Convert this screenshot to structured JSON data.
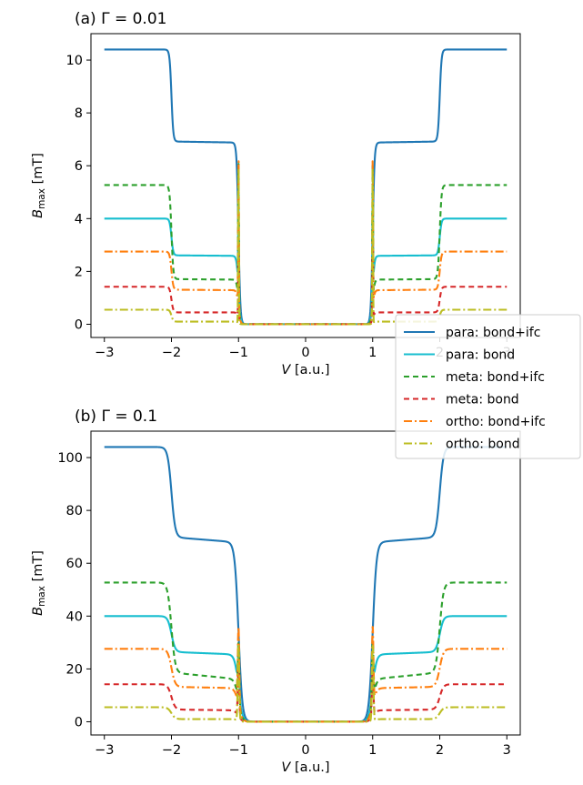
{
  "chart_data": [
    {
      "type": "line",
      "title": "(a) Γ = 0.01",
      "xlabel": "V [a.u.]",
      "ylabel": "B_max [mT]",
      "xlim": [
        -3.2,
        3.2
      ],
      "ylim": [
        -0.5,
        11.0
      ],
      "xticks": [
        -3,
        -2,
        -1,
        0,
        1,
        2,
        3
      ],
      "xtick_labels": [
        "−3",
        "−2",
        "−1",
        "0",
        "1",
        "2",
        "3"
      ],
      "yticks": [
        0,
        2,
        4,
        6,
        8,
        10
      ],
      "ytick_labels": [
        "0",
        "2",
        "4",
        "6",
        "8",
        "10"
      ],
      "gamma": 0.01,
      "series": [
        {
          "name": "para: bond+ifc",
          "plateaus": [
            10.4,
            6.9,
            0.0
          ],
          "tilt": 0.04,
          "peak": 6.9,
          "color": "#1f77b4",
          "dash": ""
        },
        {
          "name": "para: bond",
          "plateaus": [
            4.0,
            2.6,
            0.0
          ],
          "tilt": 0.02,
          "peak": 6.6,
          "color": "#17becf",
          "dash": ""
        },
        {
          "name": "meta: bond+ifc",
          "plateaus": [
            5.27,
            1.7,
            0.0
          ],
          "tilt": 0.02,
          "peak": 7.2,
          "color": "#2ca02c",
          "dash": "6 4"
        },
        {
          "name": "meta: bond",
          "plateaus": [
            1.42,
            0.45,
            0.0
          ],
          "tilt": 0.0,
          "peak": 3.5,
          "color": "#d62728",
          "dash": "6 4"
        },
        {
          "name": "ortho: bond+ifc",
          "plateaus": [
            2.75,
            1.3,
            0.0
          ],
          "tilt": 0.02,
          "peak": 7.1,
          "color": "#ff7f0e",
          "dash": "9 3 2 3"
        },
        {
          "name": "ortho: bond",
          "plateaus": [
            0.55,
            0.1,
            0.0
          ],
          "tilt": 0.0,
          "peak": 6.2,
          "color": "#bcbd22",
          "dash": "9 3 2 3"
        }
      ]
    },
    {
      "type": "line",
      "title": "(b) Γ = 0.1",
      "xlabel": "V [a.u.]",
      "ylabel": "B_max [mT]",
      "xlim": [
        -3.2,
        3.2
      ],
      "ylim": [
        -5,
        110
      ],
      "xticks": [
        -3,
        -2,
        -1,
        0,
        1,
        2,
        3
      ],
      "xtick_labels": [
        "−3",
        "−2",
        "−1",
        "0",
        "1",
        "2",
        "3"
      ],
      "yticks": [
        0,
        20,
        40,
        60,
        80,
        100
      ],
      "ytick_labels": [
        "0",
        "20",
        "40",
        "60",
        "80",
        "100"
      ],
      "gamma": 0.1,
      "series": [
        {
          "name": "para: bond+ifc",
          "plateaus": [
            104,
            69,
            0.0
          ],
          "tilt": 2.0,
          "peak": 48,
          "color": "#1f77b4",
          "dash": ""
        },
        {
          "name": "para: bond",
          "plateaus": [
            40,
            26,
            0.0
          ],
          "tilt": 1.0,
          "peak": 38,
          "color": "#17becf",
          "dash": ""
        },
        {
          "name": "meta: bond+ifc",
          "plateaus": [
            52.7,
            17.5,
            0.0
          ],
          "tilt": 2.5,
          "peak": 40,
          "color": "#2ca02c",
          "dash": "6 4"
        },
        {
          "name": "meta: bond",
          "plateaus": [
            14.2,
            4.5,
            0.0
          ],
          "tilt": 0.3,
          "peak": 22,
          "color": "#d62728",
          "dash": "6 4"
        },
        {
          "name": "ortho: bond+ifc",
          "plateaus": [
            27.6,
            13.0,
            0.0
          ],
          "tilt": 0.5,
          "peak": 43,
          "color": "#ff7f0e",
          "dash": "9 3 2 3"
        },
        {
          "name": "ortho: bond",
          "plateaus": [
            5.5,
            1.0,
            0.0
          ],
          "tilt": 0.0,
          "peak": 30,
          "color": "#bcbd22",
          "dash": "9 3 2 3"
        }
      ]
    }
  ],
  "legend": {
    "placement": "right, between panels",
    "entries": [
      {
        "label": "para: bond+ifc",
        "color": "#1f77b4",
        "dash": ""
      },
      {
        "label": "para: bond",
        "color": "#17becf",
        "dash": ""
      },
      {
        "label": "meta: bond+ifc",
        "color": "#2ca02c",
        "dash": "6 4"
      },
      {
        "label": "meta: bond",
        "color": "#d62728",
        "dash": "6 4"
      },
      {
        "label": "ortho: bond+ifc",
        "color": "#ff7f0e",
        "dash": "9 3 2 3"
      },
      {
        "label": "ortho: bond",
        "color": "#bcbd22",
        "dash": "9 3 2 3"
      }
    ]
  }
}
